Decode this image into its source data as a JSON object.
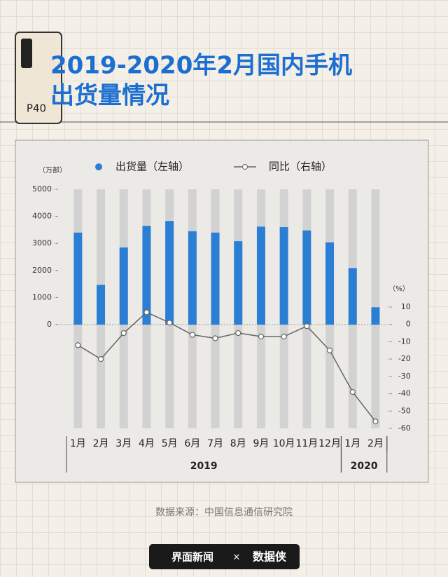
{
  "header": {
    "phone_label": "P40",
    "title": [
      "2019-2020年2月国内手机",
      "出货量情况"
    ]
  },
  "chart_data": {
    "type": "bar-line",
    "categories": [
      "1月",
      "2月",
      "3月",
      "4月",
      "5月",
      "6月",
      "7月",
      "8月",
      "9月",
      "10月",
      "11月",
      "12月",
      "1月",
      "2月"
    ],
    "years": [
      "2019",
      "2020"
    ],
    "y_unit": "（万部）",
    "y2_unit": "（%）",
    "series": [
      {
        "name": "出货量（左轴）",
        "color": "#2a7fd4",
        "type": "bar",
        "values": [
          3400,
          1470,
          2850,
          3650,
          3830,
          3450,
          3400,
          3080,
          3620,
          3600,
          3480,
          3040,
          2090,
          640
        ]
      },
      {
        "name": "同比（右轴）",
        "color": "#666666",
        "type": "line",
        "axis": "y2",
        "values": [
          -12,
          -20,
          -5,
          7,
          1,
          -6,
          -8,
          -5,
          -7,
          -7,
          -1,
          -15,
          -39,
          -56
        ]
      }
    ],
    "ylim": [
      0,
      5000
    ],
    "yticks": [
      0,
      1000,
      2000,
      3000,
      4000,
      5000
    ],
    "y2lim": [
      -60,
      10
    ],
    "y2ticks": [
      10,
      0,
      -10,
      -20,
      -30,
      -40,
      -50,
      -60
    ]
  },
  "source": "数据来源：中国信息通信研究院",
  "footer": {
    "brand": "界面新闻",
    "separator": "×",
    "partner": "数据侠"
  }
}
